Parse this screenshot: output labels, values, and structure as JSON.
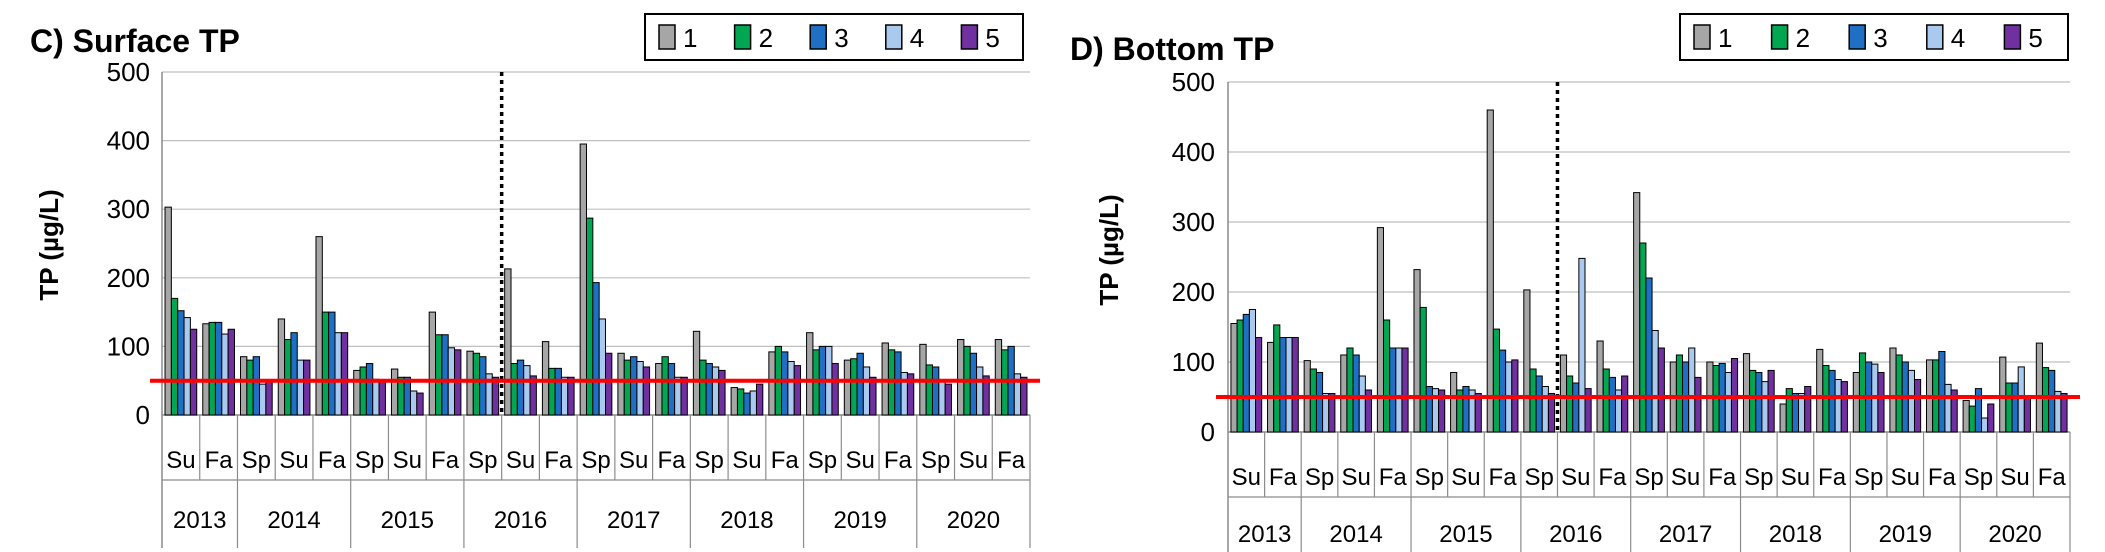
{
  "colors": {
    "series": [
      "#a6a6a6",
      "#00a651",
      "#1f6fc4",
      "#a9c9ef",
      "#7030a0"
    ],
    "threshold": "#ff0000"
  },
  "chart_data": [
    {
      "type": "bar",
      "title": "C) Surface TP",
      "ylabel": "TP (µg/L)",
      "ylim": [
        0,
        500
      ],
      "yticks": [
        0,
        100,
        200,
        300,
        400,
        500
      ],
      "grid": true,
      "legend": "top-right",
      "threshold": 50,
      "divider_after_index": 8,
      "categories": [
        "Su",
        "Fa",
        "Sp",
        "Su",
        "Fa",
        "Sp",
        "Su",
        "Fa",
        "Sp",
        "Su",
        "Fa",
        "Sp",
        "Su",
        "Fa",
        "Sp",
        "Su",
        "Fa",
        "Sp",
        "Su",
        "Fa",
        "Sp",
        "Su",
        "Fa"
      ],
      "years": [
        {
          "label": "2013",
          "span": 2
        },
        {
          "label": "2014",
          "span": 3
        },
        {
          "label": "2015",
          "span": 3
        },
        {
          "label": "2016",
          "span": 3
        },
        {
          "label": "2017",
          "span": 3
        },
        {
          "label": "2018",
          "span": 3
        },
        {
          "label": "2019",
          "span": 3
        },
        {
          "label": "2020",
          "span": 3
        }
      ],
      "series": [
        {
          "name": "1",
          "values": [
            303,
            133,
            85,
            140,
            260,
            65,
            67,
            150,
            93,
            213,
            107,
            395,
            90,
            75,
            122,
            40,
            92,
            120,
            80,
            105,
            103,
            110,
            110
          ]
        },
        {
          "name": "2",
          "values": [
            170,
            135,
            80,
            110,
            150,
            70,
            55,
            117,
            90,
            75,
            68,
            287,
            80,
            85,
            80,
            38,
            100,
            95,
            82,
            95,
            73,
            100,
            95
          ]
        },
        {
          "name": "3",
          "values": [
            152,
            135,
            85,
            120,
            150,
            75,
            55,
            117,
            85,
            80,
            68,
            193,
            85,
            75,
            75,
            32,
            92,
            100,
            90,
            92,
            70,
            90,
            100
          ]
        },
        {
          "name": "4",
          "values": [
            142,
            118,
            45,
            80,
            120,
            52,
            35,
            98,
            60,
            72,
            55,
            140,
            78,
            55,
            70,
            35,
            78,
            100,
            70,
            62,
            50,
            70,
            60
          ]
        },
        {
          "name": "5",
          "values": [
            125,
            125,
            50,
            80,
            120,
            50,
            32,
            95,
            55,
            57,
            55,
            90,
            70,
            55,
            65,
            45,
            72,
            75,
            55,
            60,
            45,
            57,
            55
          ]
        }
      ]
    },
    {
      "type": "bar",
      "title": "D) Bottom TP",
      "ylabel": "TP (µg/L)",
      "ylim": [
        0,
        500
      ],
      "yticks": [
        0,
        100,
        200,
        300,
        400,
        500
      ],
      "grid": true,
      "legend": "top-right",
      "threshold": 50,
      "divider_after_index": 8,
      "categories": [
        "Su",
        "Fa",
        "Sp",
        "Su",
        "Fa",
        "Sp",
        "Su",
        "Fa",
        "Sp",
        "Su",
        "Fa",
        "Sp",
        "Su",
        "Fa",
        "Sp",
        "Su",
        "Fa",
        "Sp",
        "Su",
        "Fa",
        "Sp",
        "Su",
        "Fa"
      ],
      "years": [
        {
          "label": "2013",
          "span": 2
        },
        {
          "label": "2014",
          "span": 3
        },
        {
          "label": "2015",
          "span": 3
        },
        {
          "label": "2016",
          "span": 3
        },
        {
          "label": "2017",
          "span": 3
        },
        {
          "label": "2018",
          "span": 3
        },
        {
          "label": "2019",
          "span": 3
        },
        {
          "label": "2020",
          "span": 3
        }
      ],
      "series": [
        {
          "name": "1",
          "values": [
            155,
            128,
            102,
            110,
            292,
            232,
            85,
            460,
            203,
            110,
            130,
            342,
            100,
            100,
            112,
            40,
            118,
            85,
            120,
            103,
            45,
            107,
            127
          ]
        },
        {
          "name": "2",
          "values": [
            160,
            153,
            90,
            120,
            160,
            178,
            60,
            147,
            90,
            80,
            90,
            270,
            110,
            95,
            88,
            62,
            95,
            113,
            110,
            103,
            37,
            70,
            92
          ]
        },
        {
          "name": "3",
          "values": [
            168,
            135,
            85,
            110,
            120,
            65,
            65,
            117,
            80,
            70,
            78,
            220,
            100,
            98,
            85,
            55,
            88,
            100,
            100,
            115,
            62,
            70,
            88
          ]
        },
        {
          "name": "4",
          "values": [
            175,
            135,
            55,
            80,
            120,
            62,
            60,
            100,
            65,
            248,
            60,
            145,
            120,
            85,
            72,
            55,
            75,
            97,
            88,
            68,
            20,
            93,
            58
          ]
        },
        {
          "name": "5",
          "values": [
            135,
            135,
            55,
            60,
            120,
            60,
            55,
            103,
            55,
            62,
            80,
            120,
            78,
            105,
            88,
            65,
            72,
            85,
            75,
            60,
            40,
            50,
            55
          ]
        }
      ]
    }
  ]
}
